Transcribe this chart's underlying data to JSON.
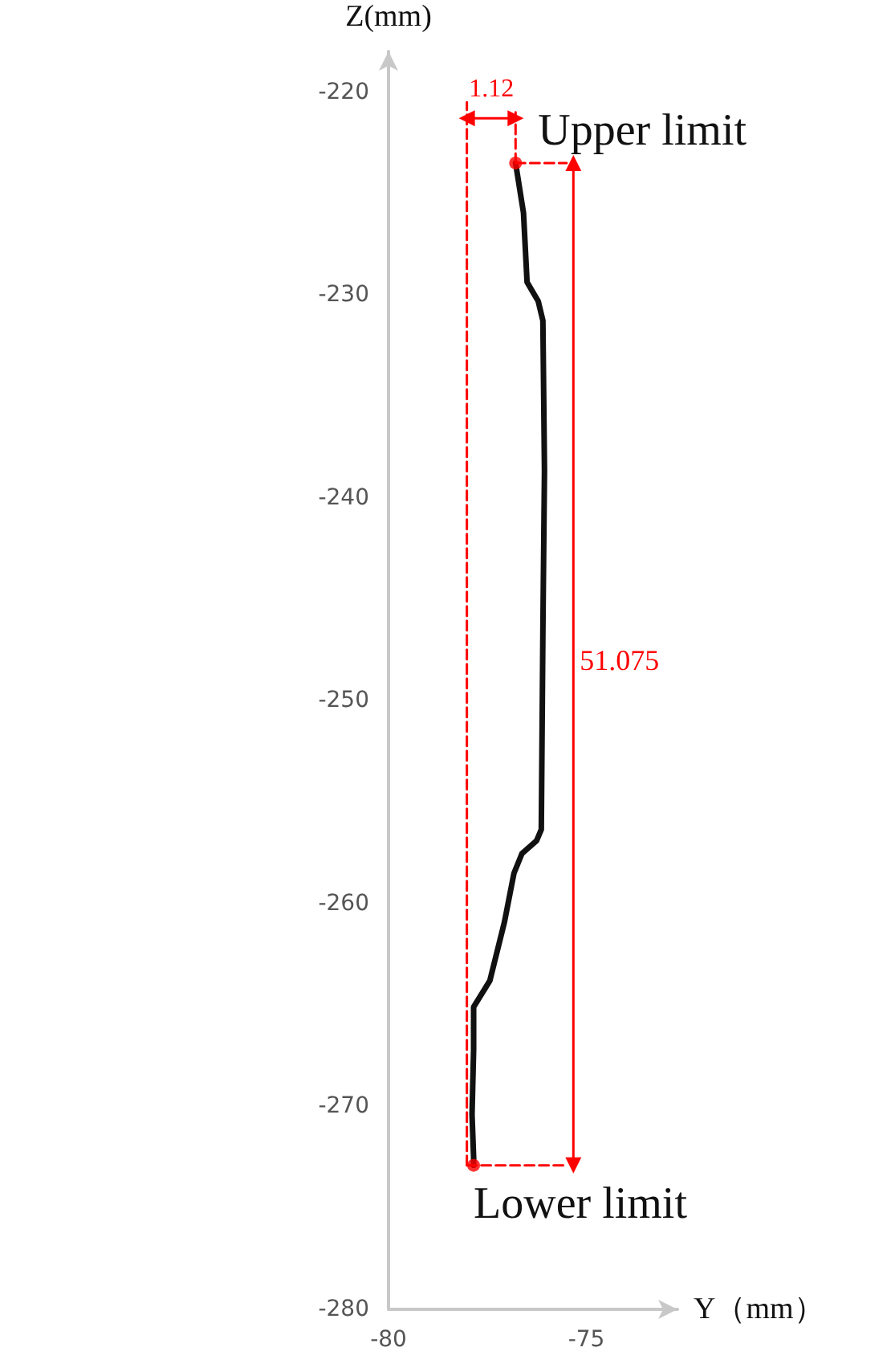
{
  "chart_data": {
    "type": "line",
    "xlabel": "Y（mm）",
    "ylabel": "Z(mm)",
    "xlim": [
      -80,
      -72.7
    ],
    "xticks": [
      -80,
      -75
    ],
    "ylim": [
      -280,
      -218
    ],
    "yticks": [
      -280,
      -270,
      -260,
      -250,
      -240,
      -230,
      -220
    ],
    "grid": false,
    "series": [
      {
        "color": "#111111",
        "marker": "none",
        "line_style": "solid",
        "x": [
          -76.79,
          -76.59,
          -76.5,
          -76.22,
          -76.1,
          -76.06,
          -76.1,
          -76.14,
          -76.26,
          -76.63,
          -76.83,
          -77.07,
          -77.44,
          -77.85,
          -77.85,
          -77.89,
          -77.85,
          -77.85
        ],
        "values": [
          -223.5,
          -225.96,
          -229.37,
          -230.3,
          -231.27,
          -238.65,
          -246.6,
          -256.35,
          -256.9,
          -257.54,
          -258.5,
          -260.9,
          -263.8,
          -265.1,
          -267.2,
          -270.4,
          -272.5,
          -272.9
        ]
      },
      {
        "type": "scatter",
        "color": "#ff0000",
        "marker": "circle",
        "x": [
          -76.79,
          -77.85
        ],
        "values": [
          -223.5,
          -272.9
        ]
      },
      {
        "color": "#ff0000",
        "marker": "none",
        "line_style": "dashed",
        "x": [
          -78.02,
          -78.02
        ],
        "values": [
          -272.9,
          -220.5
        ]
      },
      {
        "color": "#ff0000",
        "marker": "none",
        "line_style": "dashed",
        "x": [
          -76.79,
          -76.79
        ],
        "values": [
          -223.5,
          -221.0
        ]
      },
      {
        "color": "#ff0000",
        "marker": "none",
        "line_style": "dashed",
        "x": [
          -76.79,
          -75.5
        ],
        "values": [
          -223.5,
          -223.5
        ]
      },
      {
        "color": "#ff0000",
        "marker": "none",
        "line_style": "dashed",
        "x": [
          -78.02,
          -75.5
        ],
        "values": [
          -272.9,
          -272.9
        ]
      },
      {
        "color": "#ff0000",
        "marker": "triangle",
        "line_style": "solid",
        "x": [
          -75.33,
          -75.33
        ],
        "values": [
          -223.5,
          -272.9
        ]
      },
      {
        "color": "#ff0000",
        "marker": "triangle",
        "line_style": "solid",
        "x": [
          -78.02,
          -76.79
        ],
        "values": [
          -221.3,
          -221.3
        ]
      }
    ],
    "annotations": [
      {
        "text": "1.12",
        "x": -77.4,
        "y": -221.3
      },
      {
        "text": "Upper limit",
        "x": -76.79,
        "y": -223.5
      },
      {
        "text": "51.075",
        "x": -75.33,
        "y": -248
      },
      {
        "text": "Lower limit",
        "x": -77.85,
        "y": -272.9
      }
    ]
  }
}
